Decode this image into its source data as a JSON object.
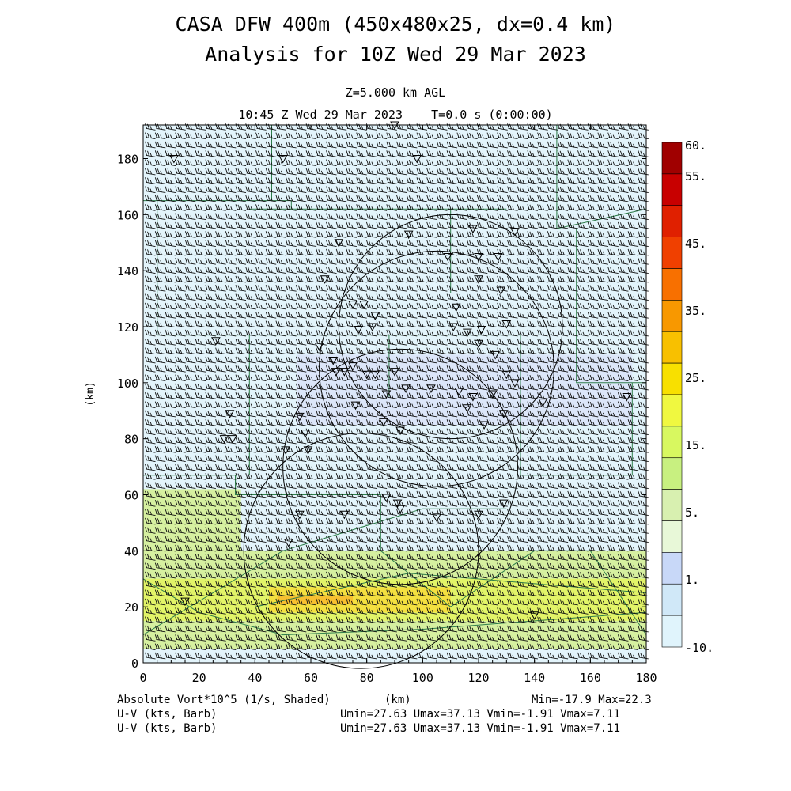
{
  "title": "CASA DFW 400m (450x480x25, dx=0.4 km)",
  "subtitle": "Analysis for 10Z Wed 29 Mar 2023",
  "level_label": "Z=5.000 km AGL",
  "time_label": "10:45 Z Wed 29 Mar 2023    T=0.0 s (0:00:00)",
  "footer": {
    "field_label": "Absolute Vort*10^5 (1/s, Shaded)",
    "xunit": "(km)",
    "minmax": "Min=-17.9 Max=22.3",
    "vector1_label": "U-V (kts, Barb)",
    "vector1_stats": "Umin=27.63 Umax=37.13 Vmin=-1.91 Vmax=7.11",
    "vector2_label": "U-V (kts, Barb)",
    "vector2_stats": "Umin=27.63 Umax=37.13 Vmin=-1.91 Vmax=7.11"
  },
  "chart_data": {
    "type": "heatmap",
    "xlabel": "",
    "ylabel": "(km)",
    "xlim": [
      0,
      180
    ],
    "ylim": [
      0,
      192
    ],
    "x_ticks": [
      0,
      20,
      40,
      60,
      80,
      100,
      120,
      140,
      160,
      180
    ],
    "y_ticks": [
      0,
      20,
      40,
      60,
      80,
      100,
      120,
      140,
      160,
      180
    ],
    "wind_barbs": {
      "u_range": [
        27.63,
        37.13
      ],
      "v_range": [
        -1.91,
        7.11
      ]
    },
    "shaded_regions": [
      {
        "x": [
          0,
          180
        ],
        "y": [
          5,
          40
        ],
        "level": "5"
      },
      {
        "x": [
          0,
          180
        ],
        "y": [
          15,
          30
        ],
        "level": "10"
      },
      {
        "x": [
          45,
          110
        ],
        "y": [
          18,
          27
        ],
        "level": "15"
      },
      {
        "x": [
          48,
          75
        ],
        "y": [
          21,
          24
        ],
        "level": "20"
      },
      {
        "x": [
          0,
          35
        ],
        "y": [
          40,
          62
        ],
        "level": "5"
      }
    ],
    "range_rings": [
      {
        "cx": 78,
        "cy": 40,
        "r": 42
      },
      {
        "cx": 92,
        "cy": 70,
        "r": 42
      },
      {
        "cx": 105,
        "cy": 105,
        "r": 42
      },
      {
        "cx": 110,
        "cy": 120,
        "r": 40
      }
    ],
    "colorbar": {
      "tick_labels": [
        "60.",
        "55.",
        "45.",
        "35.",
        "25.",
        "15.",
        "5.",
        "1.",
        "-10."
      ],
      "colors": [
        "#a00000",
        "#c80000",
        "#e02000",
        "#f04000",
        "#f87000",
        "#f89800",
        "#f8c000",
        "#f8e000",
        "#f0f840",
        "#d8f860",
        "#c8f080",
        "#d8f0b0",
        "#e8f8d8",
        "#c8d8f8",
        "#d0e8f8",
        "#e0f4fc"
      ]
    }
  }
}
